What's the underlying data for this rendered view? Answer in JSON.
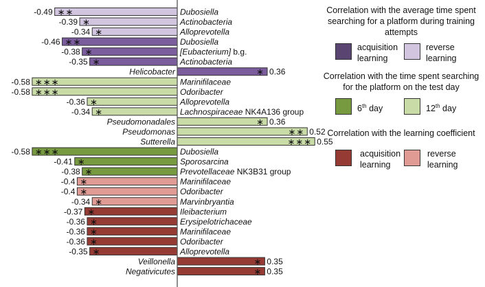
{
  "chart_data": {
    "type": "bar",
    "orientation": "horizontal",
    "xlim": [
      -0.58,
      0.55
    ],
    "grid": false,
    "colors": {
      "training_acquisition": "#7b5d9e",
      "training_reverse": "#d1c5e0",
      "test_6th": "#77993f",
      "test_12th": "#c9dca8",
      "coef_acquisition": "#963a34",
      "coef_reverse": "#df9b94"
    },
    "bars": [
      {
        "taxon": "Dubosiella",
        "suffix": "",
        "value": -0.49,
        "value_label": "-0.49",
        "stars": "**",
        "group": "training_reverse"
      },
      {
        "taxon": "Actinobacteria",
        "suffix": "",
        "value": -0.39,
        "value_label": "-0.39",
        "stars": "*",
        "group": "training_reverse"
      },
      {
        "taxon": "Alloprevotella",
        "suffix": "",
        "value": -0.34,
        "value_label": "-0.34",
        "stars": "*",
        "group": "training_reverse"
      },
      {
        "taxon": "Dubosiella",
        "suffix": "",
        "value": -0.46,
        "value_label": "-0.46",
        "stars": "**",
        "group": "training_acquisition"
      },
      {
        "taxon": "[Eubacterium]",
        "suffix": "b.g.",
        "value": -0.38,
        "value_label": "-0.38",
        "stars": "*",
        "group": "training_acquisition"
      },
      {
        "taxon": "Actinobacteria",
        "suffix": "",
        "value": -0.35,
        "value_label": "-0.35",
        "stars": "*",
        "group": "training_acquisition"
      },
      {
        "taxon": "Helicobacter",
        "suffix": "",
        "value": 0.36,
        "value_label": "0.36",
        "stars": "*",
        "group": "training_acquisition"
      },
      {
        "taxon": "Marinifilaceae",
        "suffix": "",
        "value": -0.58,
        "value_label": "-0.58",
        "stars": "***",
        "group": "test_12th"
      },
      {
        "taxon": "Odoribacter",
        "suffix": "",
        "value": -0.58,
        "value_label": "-0.58",
        "stars": "***",
        "group": "test_12th"
      },
      {
        "taxon": "Alloprevotella",
        "suffix": "",
        "value": -0.36,
        "value_label": "-0.36",
        "stars": "*",
        "group": "test_12th"
      },
      {
        "taxon": "Lachnospiraceae",
        "suffix": "NK4A136 group",
        "value": -0.34,
        "value_label": "-0.34",
        "stars": "*",
        "group": "test_12th"
      },
      {
        "taxon": "Pseudomonadales",
        "suffix": "",
        "value": 0.36,
        "value_label": "0.36",
        "stars": "*",
        "group": "test_12th"
      },
      {
        "taxon": "Pseudomonas",
        "suffix": "",
        "value": 0.52,
        "value_label": "0.52",
        "stars": "**",
        "group": "test_12th"
      },
      {
        "taxon": "Sutterella",
        "suffix": "",
        "value": 0.55,
        "value_label": "0.55",
        "stars": "***",
        "group": "test_12th"
      },
      {
        "taxon": "Dubosiella",
        "suffix": "",
        "value": -0.58,
        "value_label": "-0.58",
        "stars": "***",
        "group": "test_6th"
      },
      {
        "taxon": "Sporosarcina",
        "suffix": "",
        "value": -0.41,
        "value_label": "-0.41",
        "stars": "*",
        "group": "test_6th"
      },
      {
        "taxon": "Prevotellaceae",
        "suffix": "NK3B31 group",
        "value": -0.38,
        "value_label": "-0.38",
        "stars": "*",
        "group": "test_6th"
      },
      {
        "taxon": "Marinifilaceae",
        "suffix": "",
        "value": -0.4,
        "value_label": "-0.4",
        "stars": "*",
        "group": "coef_reverse"
      },
      {
        "taxon": "Odoribacter",
        "suffix": "",
        "value": -0.4,
        "value_label": "-0.4",
        "stars": "*",
        "group": "coef_reverse"
      },
      {
        "taxon": "Marvinbryantia",
        "suffix": "",
        "value": -0.34,
        "value_label": "-0.34",
        "stars": "*",
        "group": "coef_reverse"
      },
      {
        "taxon": "Ileibacterium",
        "suffix": "",
        "value": -0.37,
        "value_label": "-0.37",
        "stars": "*",
        "group": "coef_acquisition"
      },
      {
        "taxon": "Erysipelotrichaceae",
        "suffix": "",
        "value": -0.36,
        "value_label": "-0.36",
        "stars": "*",
        "group": "coef_acquisition"
      },
      {
        "taxon": "Marinifilaceae",
        "suffix": "",
        "value": -0.36,
        "value_label": "-0.36",
        "stars": "*",
        "group": "coef_acquisition"
      },
      {
        "taxon": "Odoribacter",
        "suffix": "",
        "value": -0.36,
        "value_label": "-0.36",
        "stars": "*",
        "group": "coef_acquisition"
      },
      {
        "taxon": "Alloprevotella",
        "suffix": "",
        "value": -0.35,
        "value_label": "-0.35",
        "stars": "*",
        "group": "coef_acquisition"
      },
      {
        "taxon": "Veillonella",
        "suffix": "",
        "value": 0.35,
        "value_label": "0.35",
        "stars": "*",
        "group": "coef_acquisition"
      },
      {
        "taxon": "Negativicutes",
        "suffix": "",
        "value": 0.35,
        "value_label": "0.35",
        "stars": "*",
        "group": "coef_acquisition"
      }
    ]
  },
  "legend": {
    "training": {
      "title": "Correlation with the average time spent searching for a platform during training attempts",
      "items": [
        {
          "line1": "acquisition",
          "line2": "learning",
          "color": "#5a4472"
        },
        {
          "line1": "reverse",
          "line2": "learning",
          "color": "#d1c5e0"
        }
      ]
    },
    "test": {
      "title": "Correlation with the time spent searching for the platform on the test day",
      "items": [
        {
          "num": "6",
          "sup": "th",
          "rest": " day",
          "color": "#77993f"
        },
        {
          "num": "12",
          "sup": "th",
          "rest": " day",
          "color": "#c9dca8"
        }
      ]
    },
    "coef": {
      "title": "Correlation with the learning coefficient",
      "items": [
        {
          "line1": "acquisition",
          "line2": "learning",
          "color": "#963a34"
        },
        {
          "line1": "reverse",
          "line2": "learning",
          "color": "#df9b94"
        }
      ]
    }
  }
}
